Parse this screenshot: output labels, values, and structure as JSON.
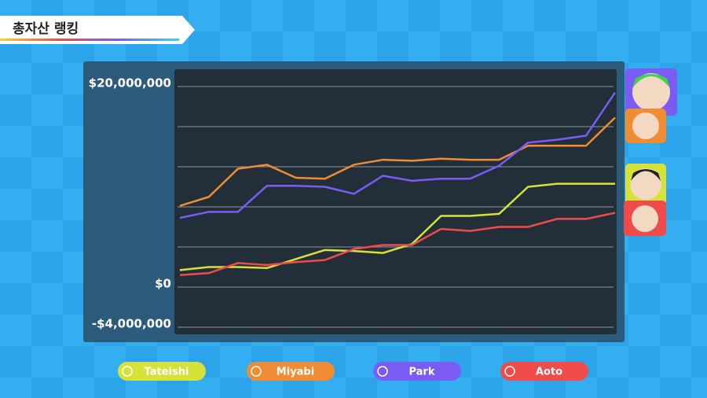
{
  "header": {
    "title": "총자산 랭킹"
  },
  "chart_data": {
    "type": "line",
    "categories": [
      null,
      null,
      null,
      null,
      null,
      null,
      null,
      null,
      null,
      null,
      null,
      null,
      null,
      null,
      null,
      null
    ],
    "ylim": [
      -4000000,
      20000000
    ],
    "yticks": [
      {
        "value": -4000000,
        "label": "-$4,000,000"
      },
      {
        "value": 0,
        "label": "$0"
      },
      {
        "value": 4000000,
        "label": null
      },
      {
        "value": 8000000,
        "label": null
      },
      {
        "value": 12000000,
        "label": null
      },
      {
        "value": 16000000,
        "label": null
      },
      {
        "value": 20000000,
        "label": "$20,000,000"
      }
    ],
    "grid": true,
    "series": [
      {
        "name": "Tateishi",
        "color": "#d6e23a",
        "values": [
          1700000,
          2000000,
          2000000,
          1900000,
          2800000,
          3700000,
          3600000,
          3400000,
          4300000,
          7100000,
          7100000,
          7300000,
          10000000,
          10300000,
          10300000,
          10300000
        ]
      },
      {
        "name": "Miyabi",
        "color": "#f08c34",
        "values": [
          8100000,
          9000000,
          11800000,
          12200000,
          10900000,
          10800000,
          12200000,
          12700000,
          12600000,
          12800000,
          12700000,
          12700000,
          14100000,
          14100000,
          14100000,
          16900000
        ]
      },
      {
        "name": "Park",
        "color": "#7a5cf5",
        "values": [
          6900000,
          7500000,
          7500000,
          10100000,
          10100000,
          10000000,
          9300000,
          11100000,
          10600000,
          10800000,
          10800000,
          12100000,
          14400000,
          14700000,
          15100000,
          19400000
        ]
      },
      {
        "name": "Aoto",
        "color": "#f04b4b",
        "values": [
          1200000,
          1400000,
          2400000,
          2200000,
          2500000,
          2700000,
          3800000,
          4200000,
          4200000,
          5800000,
          5600000,
          6000000,
          6000000,
          6800000,
          6800000,
          7400000
        ]
      }
    ]
  }
}
